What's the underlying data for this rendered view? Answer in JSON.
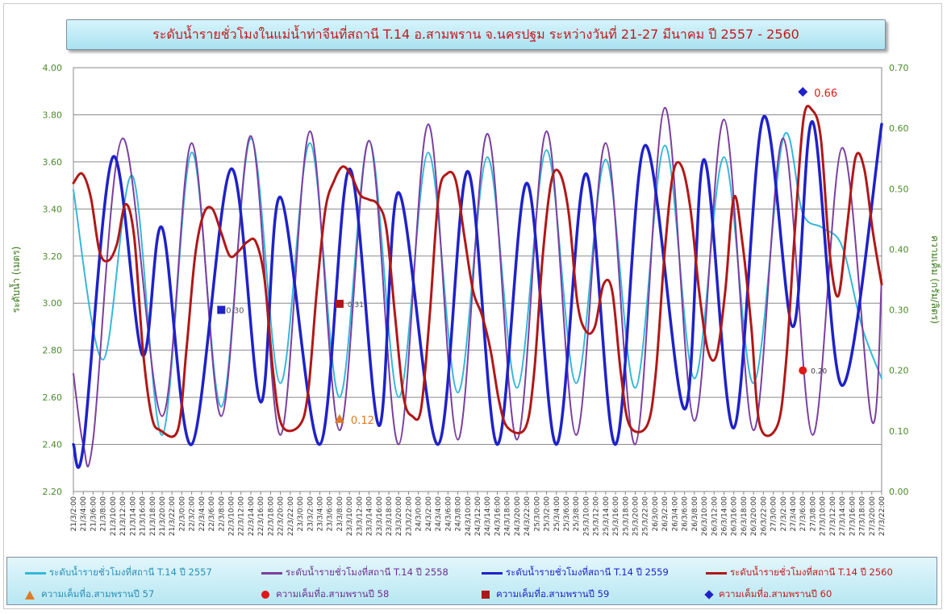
{
  "chart_data": {
    "type": "line",
    "title": "ระดับน้ำรายชั่วโมงในแม่น้ำท่าจีนที่สถานี  T.14 อ.สามพราน จ.นครปฐม ระหว่างวันที่ 21-27 มีนาคม ปี 2557 - 2560",
    "ylabel": "ระดับน้ำ (เมตร)",
    "y2label": "ความเค็ม (กรัม/ลิตร)",
    "ylim": [
      2.2,
      4.0
    ],
    "y2lim": [
      0.0,
      0.7
    ],
    "yticks": [
      "2.20",
      "2.40",
      "2.60",
      "2.80",
      "3.00",
      "3.20",
      "3.40",
      "3.60",
      "3.80",
      "4.00"
    ],
    "y2ticks": [
      "0.00",
      "0.10",
      "0.20",
      "0.30",
      "0.40",
      "0.50",
      "0.60",
      "0.70"
    ],
    "grid": true,
    "legend_position": "bottom",
    "x": [
      "21/3/2:00",
      "21/3/4:00",
      "21/3/6:00",
      "21/3/8:00",
      "21/3/10:00",
      "21/3/12:00",
      "21/3/14:00",
      "21/3/16:00",
      "21/3/18:00",
      "21/3/20:00",
      "21/3/22:00",
      "22/3/0:00",
      "22/3/2:00",
      "22/3/4:00",
      "22/3/6:00",
      "22/3/8:00",
      "22/3/10:00",
      "22/3/12:00",
      "22/3/14:00",
      "22/3/16:00",
      "22/3/18:00",
      "22/3/20:00",
      "22/3/22:00",
      "23/3/0:00",
      "23/3/2:00",
      "23/3/4:00",
      "23/3/6:00",
      "23/3/8:00",
      "23/3/10:00",
      "23/3/12:00",
      "23/3/14:00",
      "23/3/16:00",
      "23/3/18:00",
      "23/3/20:00",
      "23/3/22:00",
      "24/3/0:00",
      "24/3/2:00",
      "24/3/4:00",
      "24/3/6:00",
      "24/3/8:00",
      "24/3/10:00",
      "24/3/12:00",
      "24/3/14:00",
      "24/3/16:00",
      "24/3/18:00",
      "24/3/20:00",
      "24/3/22:00",
      "25/3/0:00",
      "25/3/2:00",
      "25/3/4:00",
      "25/3/6:00",
      "25/3/8:00",
      "25/3/10:00",
      "25/3/12:00",
      "25/3/14:00",
      "25/3/16:00",
      "25/3/18:00",
      "25/3/20:00",
      "25/3/22:00",
      "26/3/0:00",
      "26/3/2:00",
      "26/3/4:00",
      "26/3/6:00",
      "26/3/8:00",
      "26/3/10:00",
      "26/3/12:00",
      "26/3/14:00",
      "26/3/16:00",
      "26/3/18:00",
      "26/3/20:00",
      "26/3/22:00",
      "27/3/0:00",
      "27/3/2:00",
      "27/3/4:00",
      "27/3/6:00",
      "27/3/8:00",
      "27/3/10:00",
      "27/3/12:00",
      "27/3/14:00",
      "27/3/16:00",
      "27/3/18:00",
      "27/3/20:00",
      "27/3/22:00"
    ],
    "series": [
      {
        "name": "ระดับน้ำรายชั่วโมงที่สถานี T.14 ปี 2557",
        "color": "#36b7d9",
        "width": 2,
        "points": [
          [
            0,
            3.48
          ],
          [
            3,
            2.76
          ],
          [
            6,
            3.54
          ],
          [
            9,
            2.44
          ],
          [
            12,
            3.64
          ],
          [
            15,
            2.56
          ],
          [
            18,
            3.7
          ],
          [
            21,
            2.66
          ],
          [
            24,
            3.68
          ],
          [
            27,
            2.6
          ],
          [
            30,
            3.69
          ],
          [
            33,
            2.6
          ],
          [
            36,
            3.64
          ],
          [
            39,
            2.62
          ],
          [
            42,
            3.62
          ],
          [
            45,
            2.64
          ],
          [
            48,
            3.65
          ],
          [
            51,
            2.66
          ],
          [
            54,
            3.61
          ],
          [
            57,
            2.64
          ],
          [
            60,
            3.67
          ],
          [
            63,
            2.68
          ],
          [
            66,
            3.62
          ],
          [
            69,
            2.66
          ],
          [
            72,
            3.7
          ],
          [
            74,
            3.38
          ],
          [
            76,
            3.32
          ],
          [
            78,
            3.24
          ],
          [
            80,
            2.9
          ],
          [
            82,
            2.68
          ]
        ]
      },
      {
        "name": "ระดับน้ำรายชั่วโมงที่สถานี T.14  ปี 2558",
        "color": "#7b3fa0",
        "width": 2,
        "points": [
          [
            0,
            2.7
          ],
          [
            1,
            2.4
          ],
          [
            2,
            2.42
          ],
          [
            5,
            3.7
          ],
          [
            9,
            2.52
          ],
          [
            12,
            3.68
          ],
          [
            15,
            2.52
          ],
          [
            18,
            3.71
          ],
          [
            21,
            2.44
          ],
          [
            24,
            3.73
          ],
          [
            27,
            2.46
          ],
          [
            30,
            3.69
          ],
          [
            33,
            2.4
          ],
          [
            36,
            3.76
          ],
          [
            39,
            2.42
          ],
          [
            42,
            3.72
          ],
          [
            45,
            2.42
          ],
          [
            48,
            3.73
          ],
          [
            51,
            2.44
          ],
          [
            54,
            3.68
          ],
          [
            57,
            2.4
          ],
          [
            60,
            3.83
          ],
          [
            63,
            2.5
          ],
          [
            66,
            3.78
          ],
          [
            69,
            2.46
          ],
          [
            72,
            3.7
          ],
          [
            75,
            2.44
          ],
          [
            78,
            3.66
          ],
          [
            81,
            2.5
          ],
          [
            82,
            3.1
          ]
        ]
      },
      {
        "name": "ระดับน้ำรายชั่วโมงที่สถานี T.14 ปี 2559",
        "color": "#1f22c8",
        "width": 3.5,
        "points": [
          [
            0,
            2.4
          ],
          [
            1,
            2.39
          ],
          [
            4,
            3.62
          ],
          [
            7,
            2.78
          ],
          [
            9,
            3.32
          ],
          [
            12,
            2.4
          ],
          [
            16,
            3.57
          ],
          [
            19,
            2.58
          ],
          [
            21,
            3.45
          ],
          [
            25,
            2.4
          ],
          [
            28,
            3.57
          ],
          [
            31,
            2.48
          ],
          [
            33,
            3.47
          ],
          [
            37,
            2.4
          ],
          [
            40,
            3.56
          ],
          [
            43,
            2.4
          ],
          [
            46,
            3.51
          ],
          [
            49,
            2.4
          ],
          [
            52,
            3.55
          ],
          [
            55,
            2.4
          ],
          [
            58,
            3.67
          ],
          [
            62,
            2.55
          ],
          [
            64,
            3.61
          ],
          [
            67,
            2.47
          ],
          [
            70,
            3.79
          ],
          [
            73,
            2.9
          ],
          [
            75,
            3.77
          ],
          [
            78,
            2.65
          ],
          [
            82,
            3.76
          ]
        ]
      },
      {
        "name": "ระดับน้ำรายชั่วโมงที่สถานี T.14 ปี 2560",
        "color": "#b01818",
        "width": 3,
        "points": [
          [
            0,
            3.51
          ],
          [
            1,
            3.55
          ],
          [
            2,
            3.45
          ],
          [
            3,
            3.22
          ],
          [
            4,
            3.18
          ],
          [
            5,
            3.25
          ],
          [
            6,
            3.42
          ],
          [
            7,
            3.28
          ],
          [
            8,
            2.8
          ],
          [
            9,
            2.52
          ],
          [
            10,
            2.46
          ],
          [
            12,
            2.46
          ],
          [
            13,
            2.8
          ],
          [
            14,
            3.2
          ],
          [
            15,
            3.38
          ],
          [
            16,
            3.4
          ],
          [
            17,
            3.3
          ],
          [
            18,
            3.2
          ],
          [
            19,
            3.22
          ],
          [
            20,
            3.26
          ],
          [
            21,
            3.26
          ],
          [
            22,
            3.1
          ],
          [
            23,
            2.7
          ],
          [
            24,
            2.48
          ],
          [
            26,
            2.48
          ],
          [
            27,
            2.62
          ],
          [
            28,
            3.05
          ],
          [
            29,
            3.4
          ],
          [
            30,
            3.52
          ],
          [
            31,
            3.58
          ],
          [
            32,
            3.54
          ],
          [
            33,
            3.46
          ],
          [
            34,
            3.44
          ],
          [
            35,
            3.42
          ],
          [
            36,
            3.32
          ],
          [
            37,
            2.95
          ],
          [
            38,
            2.6
          ],
          [
            39,
            2.52
          ],
          [
            40,
            2.55
          ],
          [
            41,
            2.95
          ],
          [
            42,
            3.45
          ],
          [
            43,
            3.55
          ],
          [
            44,
            3.52
          ],
          [
            45,
            3.28
          ],
          [
            46,
            3.05
          ],
          [
            47,
            2.95
          ],
          [
            48,
            2.8
          ],
          [
            49,
            2.58
          ],
          [
            50,
            2.47
          ],
          [
            52,
            2.47
          ],
          [
            53,
            2.7
          ],
          [
            54,
            3.2
          ],
          [
            55,
            3.52
          ],
          [
            56,
            3.55
          ],
          [
            57,
            3.38
          ],
          [
            58,
            3.0
          ],
          [
            59,
            2.88
          ],
          [
            60,
            2.9
          ],
          [
            61,
            3.08
          ],
          [
            62,
            3.05
          ],
          [
            63,
            2.7
          ],
          [
            64,
            2.48
          ],
          [
            66,
            2.48
          ],
          [
            67,
            2.7
          ],
          [
            68,
            3.2
          ],
          [
            69,
            3.55
          ],
          [
            70,
            3.58
          ],
          [
            71,
            3.4
          ],
          [
            72,
            3.05
          ],
          [
            73,
            2.8
          ],
          [
            74,
            2.78
          ],
          [
            75,
            3.05
          ],
          [
            76,
            3.45
          ],
          [
            77,
            3.25
          ],
          [
            78,
            2.9
          ],
          [
            79,
            2.48
          ],
          [
            81,
            2.48
          ],
          [
            82,
            2.75
          ],
          [
            83,
            3.3
          ],
          [
            84,
            3.78
          ],
          [
            85,
            3.82
          ],
          [
            86,
            3.7
          ],
          [
            87,
            3.22
          ],
          [
            88,
            3.03
          ],
          [
            89,
            3.32
          ],
          [
            90,
            3.62
          ],
          [
            91,
            3.57
          ],
          [
            92,
            3.3
          ],
          [
            93,
            3.08
          ]
        ]
      }
    ],
    "salinity_markers": [
      {
        "name": "ความเค็มที่อ.สามพรานปี 57",
        "shape": "triangle",
        "color": "#e07b22",
        "x": 27,
        "value": 0.12,
        "label": "0.12",
        "label_color": "#e07b22"
      },
      {
        "name": "ความเค็มที่อ.สามพรานปี 58",
        "shape": "circle",
        "color": "#e01818",
        "x": 74,
        "value": 0.2,
        "label": "0.20",
        "label_color": "#333333"
      },
      {
        "name": "ความเค็มที่อ.สามพรานปี 59",
        "shape": "square",
        "color": "#b01818",
        "x": 27,
        "value": 0.31,
        "label": "0.31",
        "label_color": "#555555"
      },
      {
        "name": "ความเค็มที่อ.สามพรานปี 60",
        "shape": "diamond",
        "color": "#1f22c8",
        "x": 74,
        "value": 0.66,
        "label": "0.66",
        "label_color": "#e01818"
      }
    ],
    "extra_markers": [
      {
        "shape": "square",
        "color": "#1f22c8",
        "x": 15,
        "value": 0.3,
        "label": "0.30"
      }
    ]
  },
  "legend": {
    "items": [
      {
        "label": "ระดับน้ำรายชั่วโมงที่สถานี T.14 ปี 2557",
        "color": "#36b7d9",
        "kind": "line",
        "text_color": "#2a8fb5"
      },
      {
        "label": "ระดับน้ำรายชั่วโมงที่สถานี T.14  ปี 2558",
        "color": "#7b3fa0",
        "kind": "line",
        "text_color": "#6b2f90"
      },
      {
        "label": "ระดับน้ำรายชั่วโมงที่สถานี T.14 ปี 2559",
        "color": "#1f22c8",
        "kind": "line",
        "text_color": "#1f22c8"
      },
      {
        "label": "ระดับน้ำรายชั่วโมงที่สถานี T.14 ปี 2560",
        "color": "#b01818",
        "kind": "line",
        "text_color": "#c4191f"
      },
      {
        "label": "ความเค็มที่อ.สามพรานปี 57",
        "color": "#e07b22",
        "kind": "triangle",
        "text_color": "#2a8fb5"
      },
      {
        "label": "ความเค็มที่อ.สามพรานปี 58",
        "color": "#e01818",
        "kind": "circle",
        "text_color": "#6b2f90"
      },
      {
        "label": "ความเค็มที่อ.สามพรานปี 59",
        "color": "#b01818",
        "kind": "square",
        "text_color": "#1f22c8"
      },
      {
        "label": "ความเค็มที่อ.สามพรานปี 60",
        "color": "#1f22c8",
        "kind": "diamond",
        "text_color": "#c4191f"
      }
    ]
  }
}
